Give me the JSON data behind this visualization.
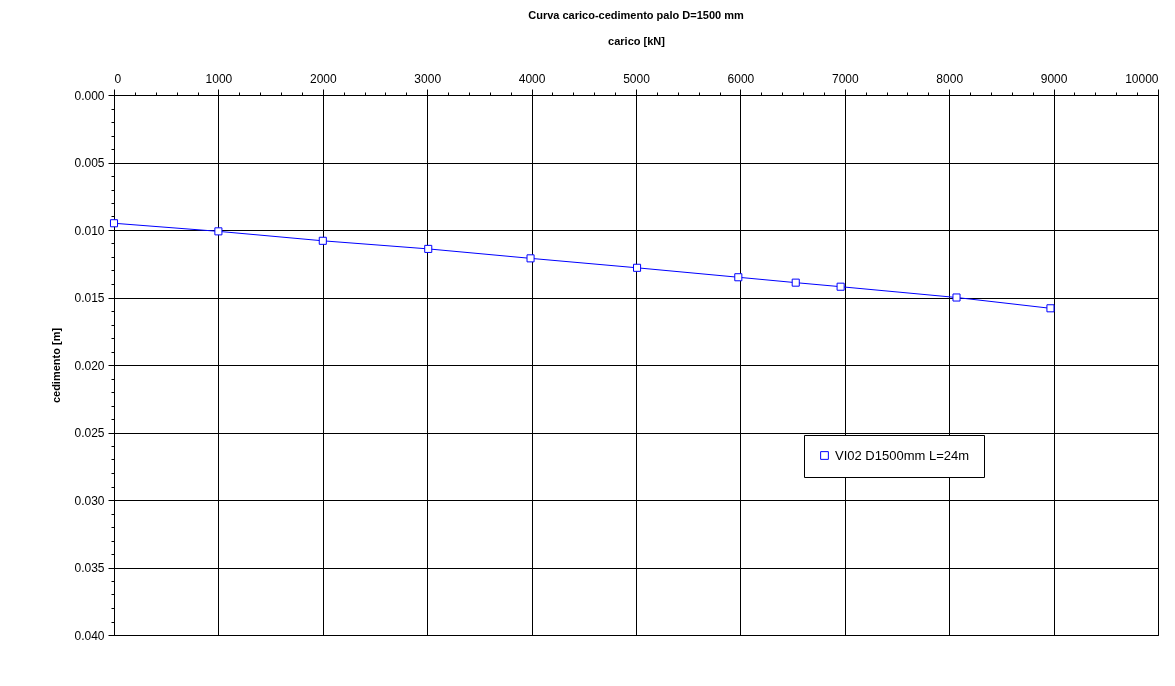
{
  "chart_data": {
    "type": "line",
    "title": "Curva carico-cedimento palo D=1500 mm",
    "xlabel": "carico [kN]",
    "ylabel": "cedimento [m]",
    "x": [
      0,
      1000,
      2000,
      3010,
      3990,
      5010,
      5980,
      6530,
      6960,
      8070,
      8970
    ],
    "series": [
      {
        "name": "VI02 D1500mm L=24m",
        "color": "#0000ff",
        "values": [
          0.0095,
          0.0101,
          0.0108,
          0.0114,
          0.0121,
          0.0128,
          0.0135,
          0.0139,
          0.0142,
          0.015,
          0.0158
        ]
      }
    ],
    "xlim": [
      0,
      10000
    ],
    "xticks": [
      0,
      {
        "value": 200,
        "label": null
      },
      {
        "value": 400,
        "label": null
      },
      {
        "value": 600,
        "label": null
      },
      {
        "value": 800,
        "label": null
      },
      1000,
      {
        "value": 1200,
        "label": null
      },
      {
        "value": 1400,
        "label": null
      },
      {
        "value": 1600,
        "label": null
      },
      {
        "value": 1800,
        "label": null
      },
      2000,
      {
        "value": 2200,
        "label": null
      },
      {
        "value": 2400,
        "label": null
      },
      {
        "value": 2600,
        "label": null
      },
      {
        "value": 2800,
        "label": null
      },
      3000,
      {
        "value": 3200,
        "label": null
      },
      {
        "value": 3400,
        "label": null
      },
      {
        "value": 3600,
        "label": null
      },
      {
        "value": 3800,
        "label": null
      },
      4000,
      {
        "value": 4200,
        "label": null
      },
      {
        "value": 4400,
        "label": null
      },
      {
        "value": 4600,
        "label": null
      },
      {
        "value": 4800,
        "label": null
      },
      5000,
      {
        "value": 5200,
        "label": null
      },
      {
        "value": 5400,
        "label": null
      },
      {
        "value": 5600,
        "label": null
      },
      {
        "value": 5800,
        "label": null
      },
      6000,
      {
        "value": 6200,
        "label": null
      },
      {
        "value": 6400,
        "label": null
      },
      {
        "value": 6600,
        "label": null
      },
      {
        "value": 6800,
        "label": null
      },
      7000,
      {
        "value": 7200,
        "label": null
      },
      {
        "value": 7400,
        "label": null
      },
      {
        "value": 7600,
        "label": null
      },
      {
        "value": 7800,
        "label": null
      },
      8000,
      {
        "value": 8200,
        "label": null
      },
      {
        "value": 8400,
        "label": null
      },
      {
        "value": 8600,
        "label": null
      },
      {
        "value": 8800,
        "label": null
      },
      9000,
      {
        "value": 9200,
        "label": null
      },
      {
        "value": 9400,
        "label": null
      },
      {
        "value": 9600,
        "label": null
      },
      {
        "value": 9800,
        "label": null
      },
      10000
    ],
    "ylim": [
      0.04,
      0
    ],
    "yticks": [
      {
        "value": 0,
        "label": "0.000"
      },
      {
        "value": 0.001,
        "label": null
      },
      {
        "value": 0.002,
        "label": null
      },
      {
        "value": 0.003,
        "label": null
      },
      {
        "value": 0.004,
        "label": null
      },
      {
        "value": 0.005,
        "label": "0.005"
      },
      {
        "value": 0.006,
        "label": null
      },
      {
        "value": 0.007,
        "label": null
      },
      {
        "value": 0.008,
        "label": null
      },
      {
        "value": 0.009,
        "label": null
      },
      {
        "value": 0.01,
        "label": "0.010"
      },
      {
        "value": 0.011,
        "label": null
      },
      {
        "value": 0.012,
        "label": null
      },
      {
        "value": 0.013,
        "label": null
      },
      {
        "value": 0.014,
        "label": null
      },
      {
        "value": 0.015,
        "label": "0.015"
      },
      {
        "value": 0.016,
        "label": null
      },
      {
        "value": 0.017,
        "label": null
      },
      {
        "value": 0.018,
        "label": null
      },
      {
        "value": 0.019,
        "label": null
      },
      {
        "value": 0.02,
        "label": "0.020"
      },
      {
        "value": 0.021,
        "label": null
      },
      {
        "value": 0.022,
        "label": null
      },
      {
        "value": 0.023,
        "label": null
      },
      {
        "value": 0.024,
        "label": null
      },
      {
        "value": 0.025,
        "label": "0.025"
      },
      {
        "value": 0.026,
        "label": null
      },
      {
        "value": 0.027,
        "label": null
      },
      {
        "value": 0.028,
        "label": null
      },
      {
        "value": 0.029,
        "label": null
      },
      {
        "value": 0.03,
        "label": "0.030"
      },
      {
        "value": 0.031,
        "label": null
      },
      {
        "value": 0.032,
        "label": null
      },
      {
        "value": 0.033,
        "label": null
      },
      {
        "value": 0.034,
        "label": null
      },
      {
        "value": 0.035,
        "label": "0.035"
      },
      {
        "value": 0.036,
        "label": null
      },
      {
        "value": 0.037,
        "label": null
      },
      {
        "value": 0.038,
        "label": null
      },
      {
        "value": 0.039,
        "label": null
      },
      {
        "value": 0.04,
        "label": "0.040"
      }
    ],
    "grid": true,
    "legend": "bottom right",
    "marker": "square",
    "line_style": "solid"
  }
}
